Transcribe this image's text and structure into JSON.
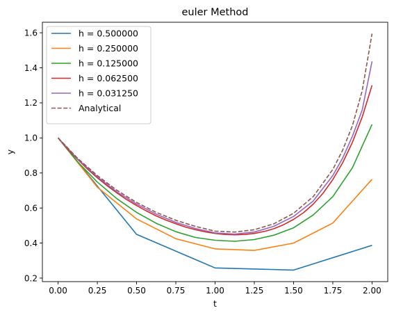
{
  "chart_data": {
    "type": "line",
    "title": "euler Method",
    "xlabel": "t",
    "ylabel": "y",
    "xlim": [
      -0.1,
      2.1
    ],
    "ylim": [
      0.18,
      1.66
    ],
    "xticks": [
      0.0,
      0.25,
      0.5,
      0.75,
      1.0,
      1.25,
      1.5,
      1.75,
      2.0
    ],
    "xtick_labels": [
      "0.00",
      "0.25",
      "0.50",
      "0.75",
      "1.00",
      "1.25",
      "1.50",
      "1.75",
      "2.00"
    ],
    "yticks": [
      0.2,
      0.4,
      0.6,
      0.8,
      1.0,
      1.2,
      1.4,
      1.6
    ],
    "ytick_labels": [
      "0.2",
      "0.4",
      "0.6",
      "0.8",
      "1.0",
      "1.2",
      "1.4",
      "1.6"
    ],
    "grid": false,
    "legend_position": "top-left",
    "series": [
      {
        "name": "h = 0.500000",
        "color": "#1f77b4",
        "dash": "solid",
        "x": [
          0,
          0.5,
          1.0,
          1.5,
          2.0
        ],
        "y": [
          1.0,
          0.45,
          0.258,
          0.246,
          0.387
        ]
      },
      {
        "name": "h = 0.250000",
        "color": "#ff7f0e",
        "dash": "solid",
        "x": [
          0,
          0.25,
          0.5,
          0.75,
          1.0,
          1.25,
          1.5,
          1.75,
          2.0
        ],
        "y": [
          1.0,
          0.719,
          0.538,
          0.425,
          0.367,
          0.358,
          0.4,
          0.514,
          0.764
        ]
      },
      {
        "name": "h = 0.125000",
        "color": "#2ca02c",
        "dash": "solid",
        "x": [
          0,
          0.125,
          0.25,
          0.375,
          0.5,
          0.625,
          0.75,
          0.875,
          1.0,
          1.125,
          1.25,
          1.375,
          1.5,
          1.625,
          1.75,
          1.875,
          2.0
        ],
        "y": [
          1.0,
          0.863,
          0.748,
          0.653,
          0.575,
          0.513,
          0.465,
          0.432,
          0.416,
          0.41,
          0.42,
          0.445,
          0.487,
          0.56,
          0.665,
          0.83,
          1.077
        ]
      },
      {
        "name": "h = 0.062500",
        "color": "#d62728",
        "dash": "solid",
        "x": [
          0,
          0.0625,
          0.125,
          0.1875,
          0.25,
          0.3125,
          0.375,
          0.4375,
          0.5,
          0.5625,
          0.625,
          0.6875,
          0.75,
          0.8125,
          0.875,
          0.9375,
          1.0,
          1.0625,
          1.125,
          1.1875,
          1.25,
          1.3125,
          1.375,
          1.4375,
          1.5,
          1.5625,
          1.625,
          1.6875,
          1.75,
          1.8125,
          1.875,
          1.9375,
          2.0
        ],
        "y": [
          1.0,
          0.935,
          0.877,
          0.822,
          0.772,
          0.727,
          0.686,
          0.648,
          0.614,
          0.583,
          0.555,
          0.531,
          0.51,
          0.491,
          0.476,
          0.464,
          0.455,
          0.449,
          0.447,
          0.449,
          0.455,
          0.466,
          0.482,
          0.505,
          0.535,
          0.573,
          0.622,
          0.684,
          0.762,
          0.858,
          0.975,
          1.12,
          1.3
        ]
      },
      {
        "name": "h = 0.031250",
        "color": "#9467bd",
        "dash": "solid",
        "x": [
          0,
          0.125,
          0.25,
          0.375,
          0.5,
          0.625,
          0.75,
          0.875,
          1.0,
          1.125,
          1.25,
          1.375,
          1.5,
          1.625,
          1.75,
          1.8125,
          1.875,
          1.9375,
          2.0
        ],
        "y": [
          1.0,
          0.879,
          0.778,
          0.692,
          0.623,
          0.565,
          0.518,
          0.483,
          0.458,
          0.451,
          0.463,
          0.496,
          0.552,
          0.64,
          0.785,
          0.885,
          1.01,
          1.16,
          1.437
        ]
      },
      {
        "name": "Analytical",
        "color": "#8c564b",
        "dash": "dashed",
        "x": [
          0,
          0.125,
          0.25,
          0.375,
          0.5,
          0.625,
          0.75,
          0.875,
          1.0,
          1.125,
          1.25,
          1.375,
          1.5,
          1.625,
          1.75,
          1.8125,
          1.875,
          1.9375,
          2.0
        ],
        "y": [
          1.0,
          0.883,
          0.785,
          0.701,
          0.632,
          0.575,
          0.53,
          0.495,
          0.468,
          0.463,
          0.476,
          0.51,
          0.57,
          0.665,
          0.82,
          0.93,
          1.07,
          1.27,
          1.595
        ]
      }
    ]
  }
}
